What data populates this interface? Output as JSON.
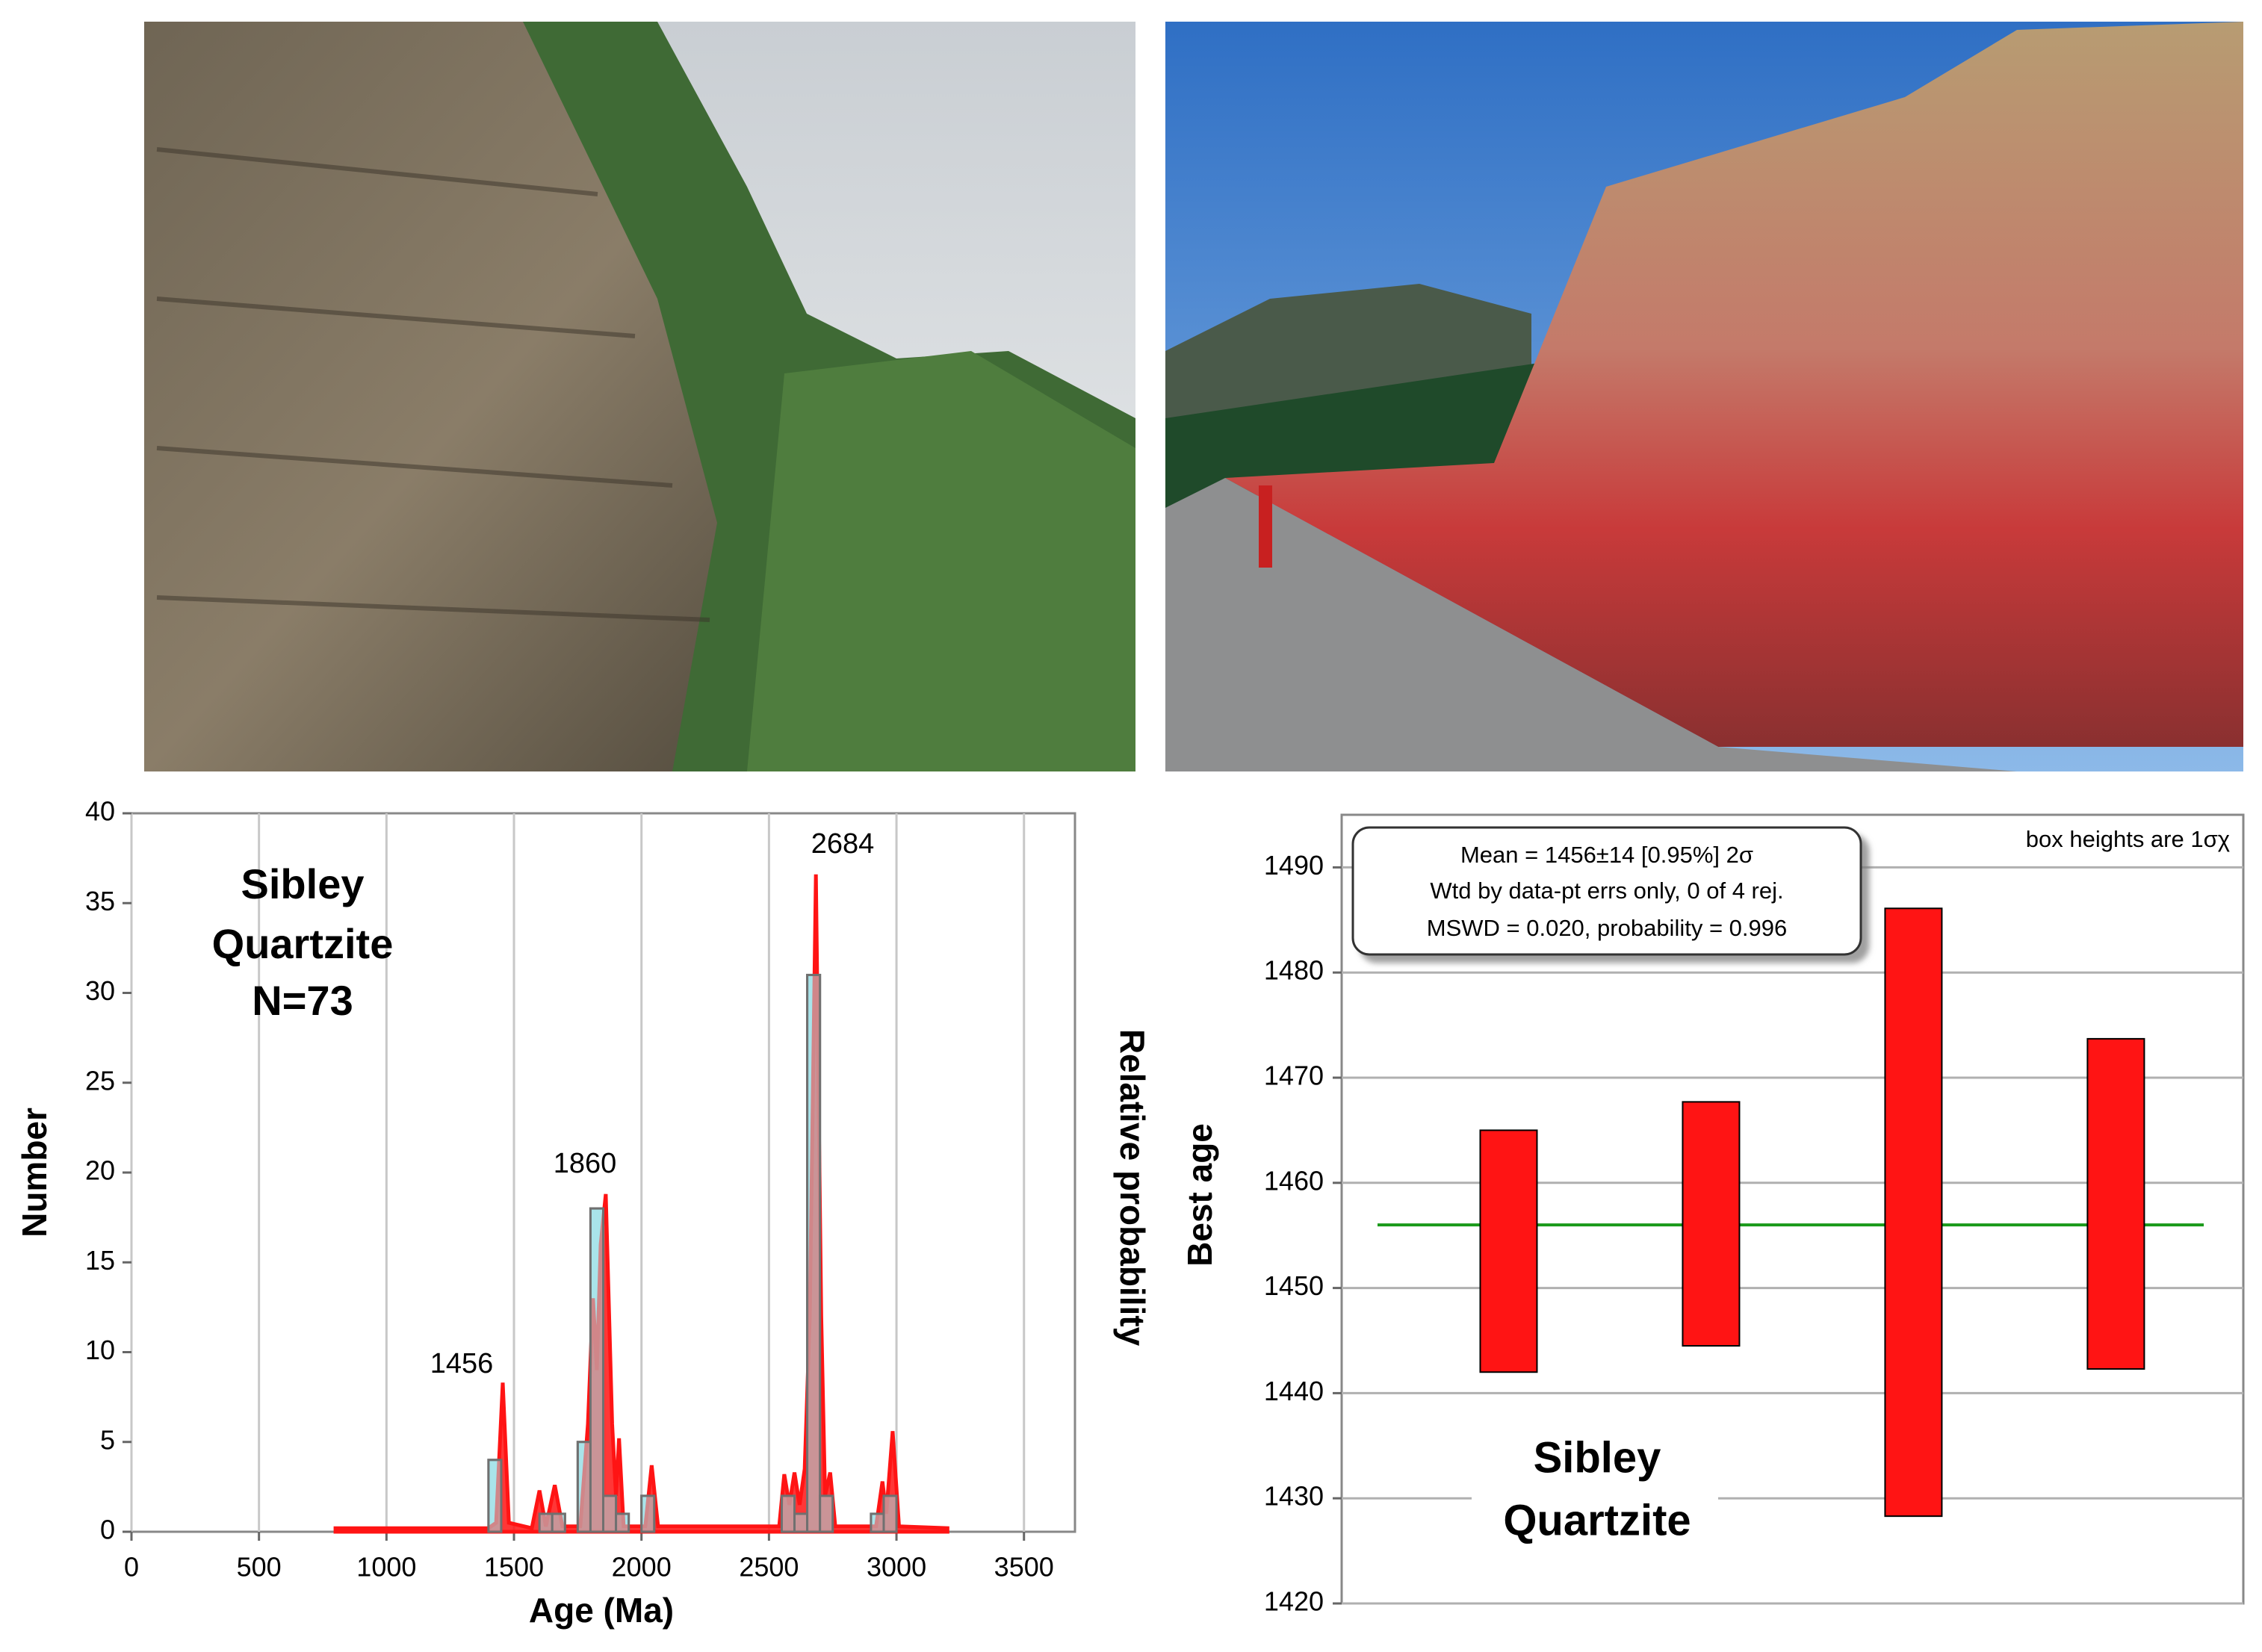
{
  "chart_data": [
    {
      "type": "histogram",
      "ylabel": "Number",
      "xlabel": "Age (Ma)",
      "y2label": "Relative probability",
      "inset": [
        "Sibley",
        "Quartzite",
        "N=73"
      ],
      "annotations": [
        "1456",
        "1860",
        "2684"
      ],
      "bins": [
        1400,
        1450,
        1500,
        1550,
        1600,
        1650,
        1700,
        1750,
        1800,
        1850,
        1900,
        1950,
        2000,
        2050,
        2100,
        2150,
        2200,
        2250,
        2300,
        2350,
        2400,
        2450,
        2500,
        2550,
        2600,
        2650,
        2700,
        2750,
        2800,
        2850,
        2900,
        2950,
        3000,
        3050
      ],
      "counts": [
        4,
        0,
        0,
        0,
        1,
        1,
        0,
        5,
        18,
        2,
        1,
        0,
        2,
        0,
        0,
        0,
        0,
        0,
        0,
        0,
        0,
        0,
        0,
        2,
        1,
        31,
        2,
        0,
        0,
        0,
        1,
        2,
        0
      ],
      "color": "#a9e4ea",
      "curve": {
        "color": "#ff1414",
        "x": [
          800,
          1400,
          1430,
          1456,
          1480,
          1570,
          1600,
          1625,
          1660,
          1690,
          1760,
          1790,
          1810,
          1825,
          1840,
          1860,
          1885,
          1900,
          1912,
          1930,
          2015,
          2040,
          2065,
          2540,
          2560,
          2580,
          2600,
          2620,
          2640,
          2660,
          2684,
          2705,
          2720,
          2740,
          2760,
          2920,
          2945,
          2960,
          2985,
          3010,
          3200
        ],
        "values": [
          0.2,
          0.2,
          0.5,
          8.3,
          0.5,
          0.2,
          2.3,
          0.3,
          2.6,
          0.3,
          0.3,
          6,
          13,
          9,
          16,
          18.8,
          6,
          2,
          5.2,
          0.3,
          0.3,
          3.7,
          0.3,
          0.3,
          3.2,
          1.5,
          3.3,
          1.5,
          3.5,
          12,
          36.6,
          12,
          2,
          3.3,
          0.3,
          0.3,
          2.8,
          1,
          5.6,
          0.3,
          0.2
        ]
      },
      "xlim": [
        0,
        3700
      ],
      "xticks": [
        0,
        500,
        1000,
        1500,
        2000,
        2500,
        3000,
        3500
      ],
      "ylim": [
        0,
        40
      ],
      "yticks": [
        0,
        5,
        10,
        15,
        20,
        25,
        30,
        35,
        40
      ],
      "grid": true
    },
    {
      "type": "box",
      "ylabel": "Best age",
      "categories": [
        null,
        null,
        null,
        null
      ],
      "values": [
        1453.5,
        1456.1,
        1457.2,
        1458
      ],
      "errors": [
        11.5,
        11.6,
        28.9,
        15.7
      ],
      "color": "#ff1414",
      "mean": 1456,
      "mean_color": "#1a9a1a",
      "stats": [
        "Mean = 1456±14  [0.95%]  2σ",
        "Wtd by data-pt errs only, 0 of 4 rej.",
        "MSWD = 0.020, probability = 0.996"
      ],
      "note": "box heights are 1σχ",
      "inset": [
        "Sibley",
        "Quartzite"
      ],
      "ylim": [
        1420,
        1495
      ],
      "yticks": [
        1420,
        1430,
        1440,
        1450,
        1460,
        1470,
        1480,
        1490
      ],
      "grid": true
    }
  ]
}
